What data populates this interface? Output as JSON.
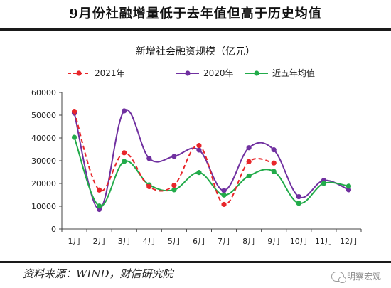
{
  "header": {
    "title": "9月份社融增量低于去年值但高于历史均值"
  },
  "footer": {
    "source": "资料来源：WIND，财信研究院",
    "watermark": "明察宏观"
  },
  "colors": {
    "series_2021": "#e8262a",
    "series_2020": "#7030a0",
    "series_avg": "#22ab4a",
    "axis": "#444444"
  },
  "chart_data": {
    "type": "line",
    "title": "新增社会融资规模（亿元）",
    "categories": [
      "1月",
      "2月",
      "3月",
      "4月",
      "5月",
      "6月",
      "7月",
      "8月",
      "9月",
      "10月",
      "11月",
      "12月"
    ],
    "ylim": [
      0,
      60000
    ],
    "yticks": [
      "0",
      "10000",
      "20000",
      "30000",
      "40000",
      "50000",
      "60000"
    ],
    "grid": false,
    "legend_position": "top",
    "series": [
      {
        "name": "2021年",
        "style": "dashed",
        "color": "#e8262a",
        "values": [
          51700,
          17100,
          33500,
          18600,
          19200,
          36700,
          10800,
          29600,
          29000,
          null,
          null,
          null
        ]
      },
      {
        "name": "2020年",
        "style": "solid",
        "color": "#7030a0",
        "values": [
          50900,
          8600,
          51900,
          31000,
          31900,
          34700,
          16900,
          35700,
          34800,
          14200,
          21300,
          17200
        ]
      },
      {
        "name": "近五年均值",
        "style": "solid",
        "color": "#22ab4a",
        "values": [
          40300,
          10100,
          29700,
          19400,
          17200,
          24800,
          14900,
          23300,
          25300,
          11300,
          20000,
          18800
        ]
      }
    ]
  }
}
